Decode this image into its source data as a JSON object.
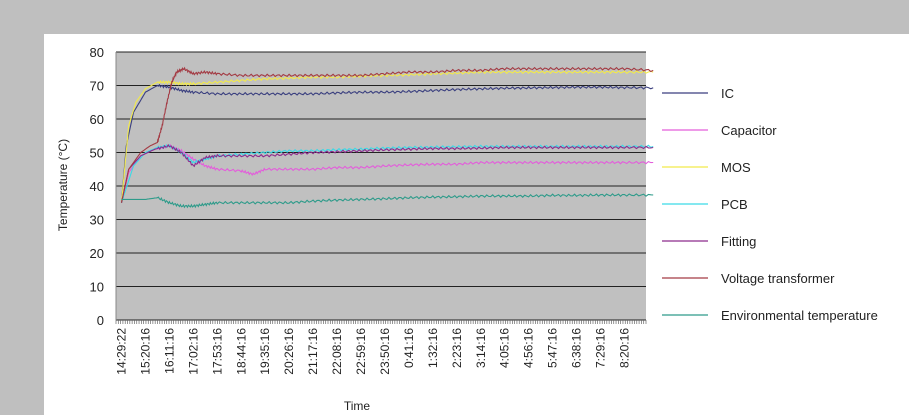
{
  "chart_data": {
    "type": "line",
    "xlabel": "Time",
    "ylabel": "Temperature (°C)",
    "ylim": [
      0,
      80
    ],
    "yticks": [
      0,
      10,
      20,
      30,
      40,
      50,
      60,
      70,
      80
    ],
    "grid": "horizontal",
    "legend_position": "right",
    "categories": [
      "14:29:22",
      "15:20:16",
      "16:11:16",
      "17:02:16",
      "17:53:16",
      "18:44:16",
      "19:35:16",
      "20:26:16",
      "21:17:16",
      "22:08:16",
      "22:59:16",
      "23:50:16",
      "0:41:16",
      "1:32:16",
      "2:23:16",
      "3:14:16",
      "4:05:16",
      "4:56:16",
      "5:47:16",
      "6:38:16",
      "7:29:16",
      "8:20:16"
    ],
    "series": [
      {
        "name": "IC",
        "color": "#3a3f7f",
        "x": [
          0,
          0.2,
          0.5,
          1,
          1.5,
          2,
          2.5,
          3,
          4,
          5,
          6,
          7,
          8,
          9,
          10,
          11,
          12,
          13,
          14,
          15,
          16,
          17,
          18,
          19,
          20,
          21,
          22.2
        ],
        "values": [
          35,
          52,
          62,
          68,
          70,
          69.5,
          68.5,
          68,
          67.5,
          67.5,
          67.5,
          67.5,
          67.5,
          67.8,
          68,
          68,
          68.2,
          68.5,
          68.8,
          69,
          69.2,
          69.3,
          69.4,
          69.5,
          69.5,
          69.4,
          69.3
        ]
      },
      {
        "name": "Capacitor",
        "color": "#e35ddb",
        "x": [
          0,
          0.3,
          0.8,
          1.4,
          2,
          2.5,
          3,
          3.5,
          4,
          5,
          5.5,
          6,
          7,
          8,
          9,
          10,
          11,
          12,
          13,
          14,
          15,
          16,
          17,
          18,
          19,
          20,
          21,
          22.2
        ],
        "values": [
          35,
          44,
          49,
          51,
          52,
          50.5,
          48,
          46,
          45,
          44.5,
          43.5,
          45,
          45,
          45,
          45.5,
          45.5,
          46,
          46.3,
          46.5,
          46.5,
          47,
          47,
          47,
          47,
          47,
          47,
          47,
          47
        ]
      },
      {
        "name": "MOS",
        "color": "#f2ea4a",
        "x": [
          0,
          0.3,
          0.6,
          1,
          1.5,
          2,
          2.5,
          3,
          4,
          5,
          6,
          7,
          8,
          9,
          10,
          11,
          12,
          13,
          14,
          15,
          16,
          17,
          18,
          19,
          20,
          21,
          22.2
        ],
        "values": [
          35,
          58,
          65,
          69,
          71,
          71,
          70.5,
          70.5,
          71,
          71.5,
          72,
          72.2,
          72.5,
          72.5,
          72.8,
          73,
          73.2,
          73.5,
          73.7,
          74,
          74,
          74,
          74,
          74,
          74,
          74,
          74
        ]
      },
      {
        "name": "PCB",
        "color": "#3ad9e6",
        "x": [
          0,
          0.5,
          1,
          1.5,
          2,
          2.5,
          3,
          3.5,
          4,
          5,
          6,
          7,
          8,
          9,
          10,
          11,
          12,
          13,
          14,
          15,
          16,
          17,
          18,
          19,
          20,
          21,
          22.2
        ],
        "values": [
          35,
          46,
          50,
          51.5,
          52,
          50,
          47,
          48,
          49,
          49.5,
          50,
          50.5,
          50.5,
          50.8,
          51,
          51.3,
          51.5,
          51.6,
          51.7,
          51.8,
          51.8,
          51.8,
          51.8,
          51.8,
          51.8,
          51.8,
          51.8
        ]
      },
      {
        "name": "Fitting",
        "color": "#8c2a8c",
        "x": [
          0,
          0.3,
          0.8,
          1.4,
          2,
          2.5,
          3,
          3.5,
          4,
          5,
          6,
          7,
          8,
          9,
          10,
          11,
          12,
          13,
          14,
          15,
          16,
          17,
          18,
          19,
          20,
          21,
          22.2
        ],
        "values": [
          35,
          45,
          49,
          51,
          52,
          50,
          46,
          48.5,
          49,
          49,
          49,
          49.5,
          50,
          50.2,
          50.5,
          50.8,
          51,
          51.2,
          51.2,
          51.3,
          51.5,
          51.5,
          51.5,
          51.5,
          51.5,
          51.5,
          51.5
        ]
      },
      {
        "name": "Voltage transformer",
        "color": "#a33a43",
        "x": [
          0,
          0.3,
          0.8,
          1.2,
          1.5,
          1.7,
          1.9,
          2.1,
          2.3,
          2.6,
          3,
          3.5,
          4,
          5,
          6,
          7,
          8,
          9,
          10,
          11,
          12,
          13,
          14,
          15,
          16,
          17,
          18,
          19,
          20,
          21,
          22.2
        ],
        "values": [
          35,
          45,
          50,
          52,
          53,
          58,
          65,
          71,
          74,
          75,
          73.5,
          74,
          73.5,
          73,
          73,
          73,
          73,
          73,
          73,
          73.5,
          74,
          74,
          74.5,
          74.5,
          75,
          75,
          75,
          75,
          75,
          75,
          74.5
        ]
      },
      {
        "name": "Environmental temperature",
        "color": "#2e9b8a",
        "x": [
          0,
          0.5,
          1,
          1.5,
          2,
          2.5,
          3,
          3.5,
          4,
          5,
          6,
          7,
          8,
          9,
          10,
          11,
          12,
          13,
          14,
          15,
          16,
          17,
          18,
          19,
          20,
          21,
          22.2
        ],
        "values": [
          36,
          36,
          36,
          36.5,
          35,
          34,
          34,
          34.5,
          35,
          35,
          35,
          35,
          35.5,
          35.8,
          36,
          36.2,
          36.5,
          36.7,
          36.8,
          37,
          37,
          37,
          37.2,
          37.2,
          37.3,
          37.3,
          37.3
        ]
      }
    ]
  }
}
